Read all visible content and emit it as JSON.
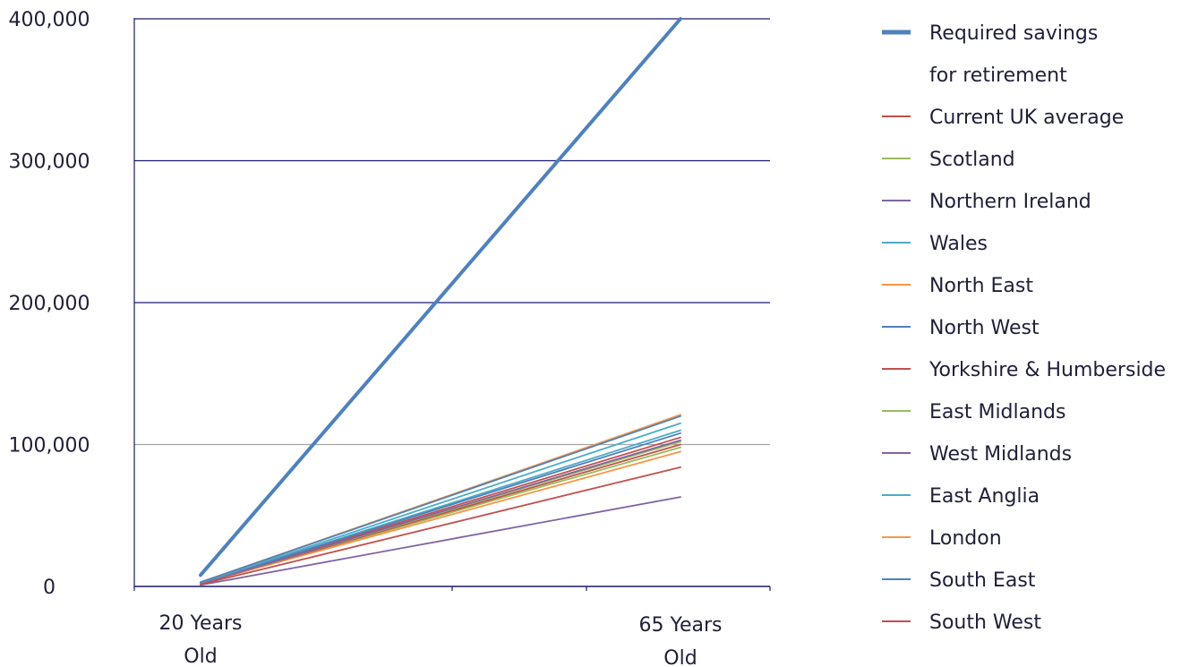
{
  "chart_data": {
    "type": "line",
    "x": [
      "20 Years Old",
      "65 Years Old"
    ],
    "x_tick_lines": [
      [
        "20 Years",
        "Old"
      ],
      [
        "65 Years",
        "Old"
      ]
    ],
    "ylim": [
      0,
      400000
    ],
    "y_ticks": [
      0,
      100000,
      200000,
      300000,
      400000
    ],
    "y_tick_labels": [
      "0",
      "100,000",
      "200,000",
      "300,000",
      "400,000"
    ],
    "grid": true,
    "legend_position": "right",
    "series": [
      {
        "name": "Required savings for retirement",
        "name_lines": [
          "Required savings",
          "for retirement"
        ],
        "color": "#4f81bd",
        "values": [
          8000,
          400000
        ],
        "bold": true
      },
      {
        "name": "Current UK average",
        "color": "#c0504d",
        "values": [
          2500,
          105000
        ]
      },
      {
        "name": "Scotland",
        "color": "#9bbb59",
        "values": [
          2000,
          98000
        ]
      },
      {
        "name": "Northern Ireland",
        "color": "#8064a2",
        "values": [
          1000,
          63000
        ]
      },
      {
        "name": "Wales",
        "color": "#4bacc6",
        "values": [
          2500,
          110000
        ]
      },
      {
        "name": "North East",
        "color": "#f79646",
        "values": [
          2000,
          95000
        ]
      },
      {
        "name": "North West",
        "color": "#4f81bd",
        "values": [
          2500,
          108000
        ]
      },
      {
        "name": "Yorkshire & Humberside",
        "color": "#c0504d",
        "values": [
          2000,
          100000
        ]
      },
      {
        "name": "East Midlands",
        "color": "#9bbb59",
        "values": [
          2000,
          102000
        ]
      },
      {
        "name": "West Midlands",
        "color": "#8064a2",
        "values": [
          2000,
          103000
        ]
      },
      {
        "name": "East Anglia",
        "color": "#4bacc6",
        "values": [
          2500,
          115000
        ]
      },
      {
        "name": "London",
        "color": "#f79646",
        "values": [
          3000,
          121000
        ]
      },
      {
        "name": "South East",
        "color": "#4f81bd",
        "values": [
          3000,
          120000
        ]
      },
      {
        "name": "South West",
        "color": "#c0504d",
        "values": [
          1500,
          84000
        ]
      }
    ]
  }
}
